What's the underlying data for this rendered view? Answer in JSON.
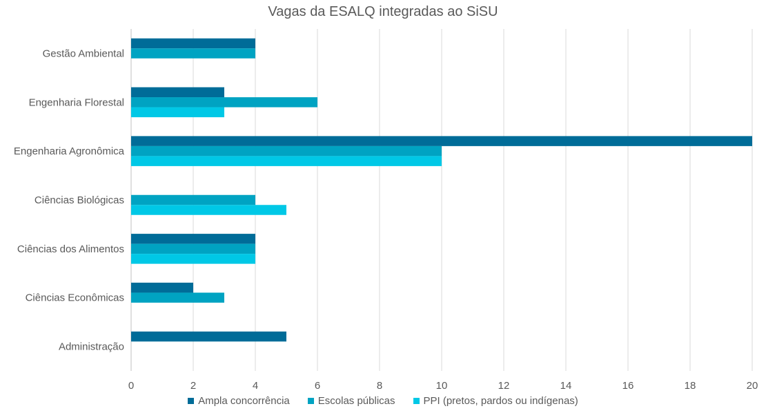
{
  "chart_data": {
    "type": "bar",
    "orientation": "horizontal",
    "title": "Vagas da ESALQ integradas ao SiSU",
    "categories": [
      "Gestão Ambiental",
      "Engenharia Florestal",
      "Engenharia Agronômica",
      "Ciências Biológicas",
      "Ciências dos Alimentos",
      "Ciências Econômicas",
      "Administração"
    ],
    "series": [
      {
        "name": "Ampla concorrência",
        "color": "#006c98",
        "values": [
          4,
          3,
          20,
          0,
          4,
          2,
          5
        ]
      },
      {
        "name": "Escolas públicas",
        "color": "#00a3c2",
        "values": [
          4,
          6,
          10,
          4,
          4,
          3,
          0
        ]
      },
      {
        "name": "PPI (pretos, pardos ou indígenas)",
        "color": "#00c8e6",
        "values": [
          0,
          3,
          10,
          5,
          4,
          0,
          0
        ]
      }
    ],
    "xlim": [
      0,
      20
    ],
    "xticks": [
      "0",
      "2",
      "4",
      "6",
      "8",
      "10",
      "12",
      "14",
      "16",
      "18",
      "20"
    ],
    "grid": "vertical",
    "legend": "bottom"
  }
}
